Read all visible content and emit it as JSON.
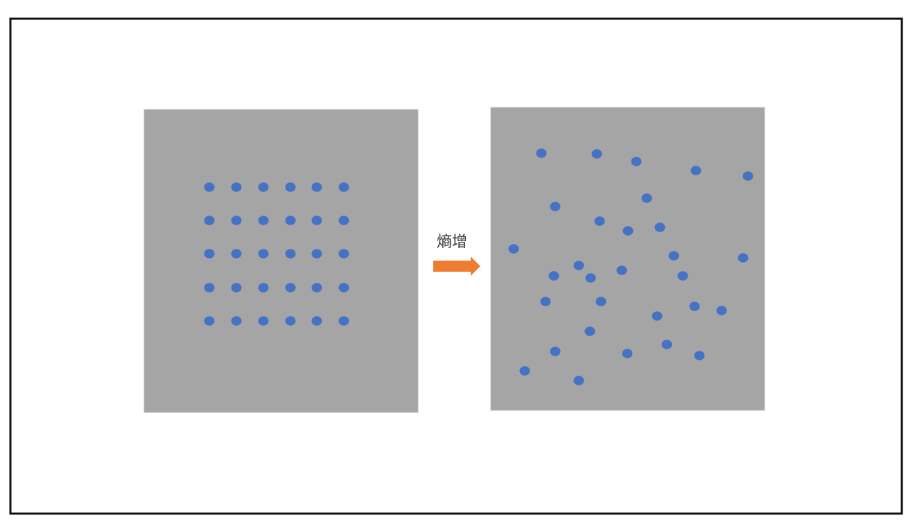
{
  "label": "熵增"
}
